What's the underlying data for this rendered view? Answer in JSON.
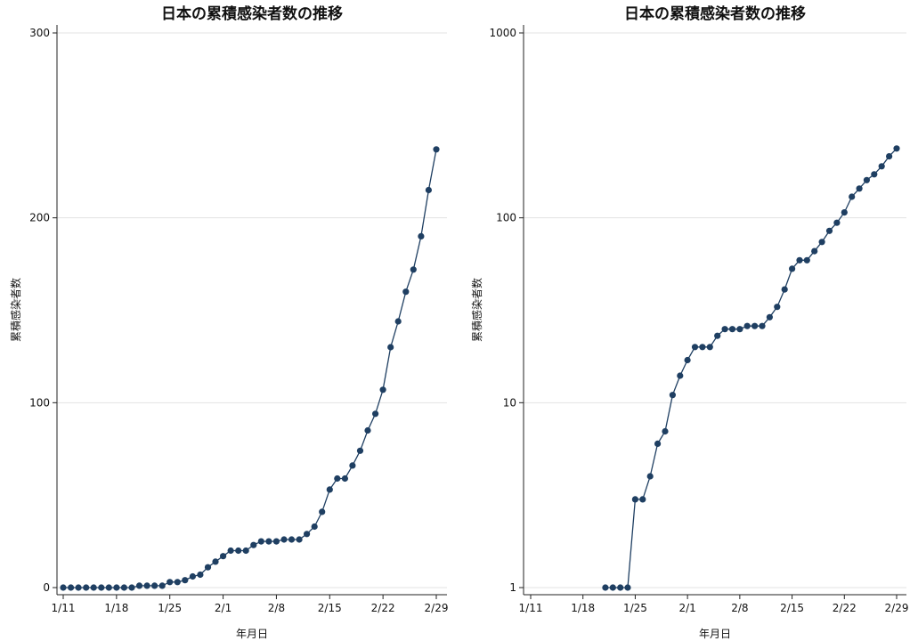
{
  "chart_data": [
    {
      "type": "line",
      "title": "日本の累積感染者数の推移",
      "xlabel": "年月日",
      "ylabel": "累積感染者数",
      "yscale": "linear",
      "ylim": [
        0,
        300
      ],
      "yticks": [
        0,
        100,
        200,
        300
      ],
      "ytick_labels": [
        "0",
        "100",
        "200",
        "300"
      ],
      "x_range": [
        "1/11",
        "2/29"
      ],
      "xticks": [
        "1/11",
        "1/18",
        "1/25",
        "2/1",
        "2/8",
        "2/15",
        "2/22",
        "2/29"
      ],
      "grid": true,
      "marker": "circle",
      "series": [
        {
          "x": [
            "1/11",
            "1/12",
            "1/13",
            "1/14",
            "1/15",
            "1/16",
            "1/17",
            "1/18",
            "1/19",
            "1/20",
            "1/21",
            "1/22",
            "1/23",
            "1/24",
            "1/25",
            "1/26",
            "1/27",
            "1/28",
            "1/29",
            "1/30",
            "1/31",
            "2/1",
            "2/2",
            "2/3",
            "2/4",
            "2/5",
            "2/6",
            "2/7",
            "2/8",
            "2/9",
            "2/10",
            "2/11",
            "2/12",
            "2/13",
            "2/14",
            "2/15",
            "2/16",
            "2/17",
            "2/18",
            "2/19",
            "2/20",
            "2/21",
            "2/22",
            "2/23",
            "2/24",
            "2/25",
            "2/26",
            "2/27",
            "2/28",
            "2/29"
          ],
          "values": [
            0,
            0,
            0,
            0,
            0,
            0,
            0,
            0,
            0,
            0,
            1,
            1,
            1,
            1,
            3,
            3,
            4,
            6,
            7,
            11,
            14,
            17,
            20,
            20,
            20,
            23,
            25,
            25,
            25,
            26,
            26,
            26,
            29,
            33,
            41,
            53,
            59,
            59,
            66,
            74,
            85,
            94,
            107,
            130,
            144,
            160,
            172,
            190,
            215,
            237
          ]
        }
      ]
    },
    {
      "type": "line",
      "title": "日本の累積感染者数の推移",
      "xlabel": "年月日",
      "ylabel": "累積感染者数",
      "yscale": "log",
      "ylim": [
        1,
        1000
      ],
      "yticks": [
        1,
        10,
        100,
        1000
      ],
      "ytick_labels": [
        "1",
        "10",
        "100",
        "1000"
      ],
      "x_range": [
        "1/11",
        "2/29"
      ],
      "xticks": [
        "1/11",
        "1/18",
        "1/25",
        "2/1",
        "2/8",
        "2/15",
        "2/22",
        "2/29"
      ],
      "grid": true,
      "marker": "circle",
      "series": [
        {
          "x": [
            "1/21",
            "1/22",
            "1/23",
            "1/24",
            "1/25",
            "1/26",
            "1/27",
            "1/28",
            "1/29",
            "1/30",
            "1/31",
            "2/1",
            "2/2",
            "2/3",
            "2/4",
            "2/5",
            "2/6",
            "2/7",
            "2/8",
            "2/9",
            "2/10",
            "2/11",
            "2/12",
            "2/13",
            "2/14",
            "2/15",
            "2/16",
            "2/17",
            "2/18",
            "2/19",
            "2/20",
            "2/21",
            "2/22",
            "2/23",
            "2/24",
            "2/25",
            "2/26",
            "2/27",
            "2/28",
            "2/29"
          ],
          "values": [
            1,
            1,
            1,
            1,
            3,
            3,
            4,
            6,
            7,
            11,
            14,
            17,
            20,
            20,
            20,
            23,
            25,
            25,
            25,
            26,
            26,
            26,
            29,
            33,
            41,
            53,
            59,
            59,
            66,
            74,
            85,
            94,
            107,
            130,
            144,
            160,
            172,
            190,
            215,
            237
          ]
        }
      ]
    }
  ]
}
